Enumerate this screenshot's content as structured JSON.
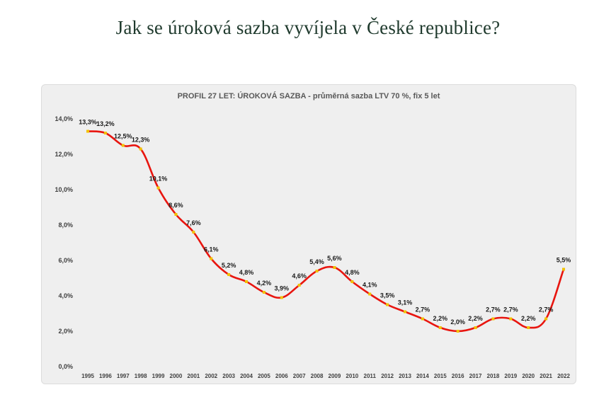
{
  "page": {
    "title": "Jak se úroková sazba vyvíjela v České republice?"
  },
  "colors": {
    "line": "#e8150f",
    "marker": "#f2c200",
    "card_bg": "#efefef",
    "title_text": "#1f3a2d"
  },
  "chart_data": {
    "type": "line",
    "title": "PROFIL 27 LET: ÚROKOVÁ SAZBA - průměrná sazba LTV 70 %, fix 5 let",
    "xlabel": "",
    "ylabel": "",
    "ylim": [
      0,
      14
    ],
    "y_ticks": [
      "0,0%",
      "2,0%",
      "4,0%",
      "6,0%",
      "8,0%",
      "10,0%",
      "12,0%",
      "14,0%"
    ],
    "y_tick_values": [
      0,
      2,
      4,
      6,
      8,
      10,
      12,
      14
    ],
    "grid": false,
    "legend": false,
    "categories": [
      "1995",
      "1996",
      "1997",
      "1998",
      "1999",
      "2000",
      "2001",
      "2002",
      "2003",
      "2004",
      "2005",
      "2006",
      "2007",
      "2008",
      "2009",
      "2010",
      "2011",
      "2012",
      "2013",
      "2014",
      "2015",
      "2016",
      "2017",
      "2018",
      "2019",
      "2020",
      "2021",
      "2022"
    ],
    "values": [
      13.3,
      13.2,
      12.5,
      12.3,
      10.1,
      8.6,
      7.6,
      6.1,
      5.2,
      4.8,
      4.2,
      3.9,
      4.6,
      5.4,
      5.6,
      4.8,
      4.1,
      3.5,
      3.1,
      2.7,
      2.2,
      2.0,
      2.2,
      2.7,
      2.7,
      2.2,
      2.7,
      5.5
    ],
    "data_labels": [
      "13,3%",
      "13,2%",
      "12,5%",
      "12,3%",
      "10,1%",
      "8,6%",
      "7,6%",
      "6,1%",
      "5,2%",
      "4,8%",
      "4,2%",
      "3,9%",
      "4,6%",
      "5,4%",
      "5,6%",
      "4,8%",
      "4,1%",
      "3,5%",
      "3,1%",
      "2,7%",
      "2,2%",
      "2,0%",
      "2,2%",
      "2,7%",
      "2,7%",
      "2,2%",
      "2,7%",
      "5,5%"
    ]
  }
}
